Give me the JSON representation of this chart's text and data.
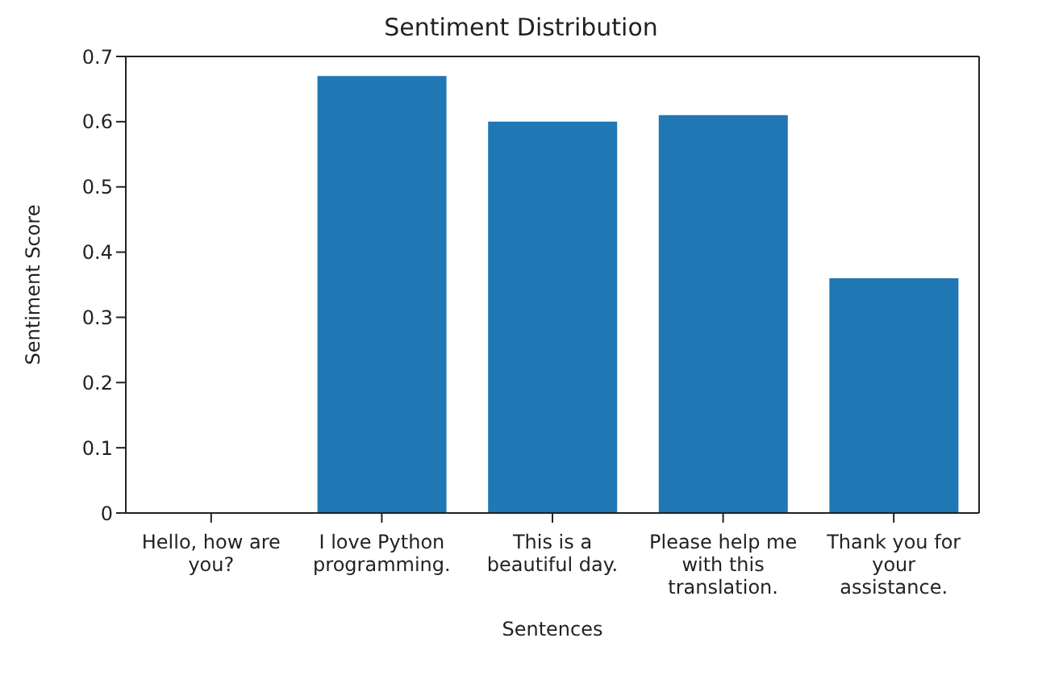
{
  "chart_data": {
    "type": "bar",
    "title": "Sentiment Distribution",
    "xlabel": "Sentences",
    "ylabel": "Sentiment Score",
    "categories": [
      "Hello, how are you?",
      "I love Python programming.",
      "This is a beautiful day.",
      "Please help me with this translation.",
      "Thank you for your assistance."
    ],
    "values": [
      0,
      0.67,
      0.6,
      0.61,
      0.36
    ],
    "color": "#1f77b4",
    "ylim": [
      0,
      0.7
    ],
    "yticks": [
      0,
      0.1,
      0.2,
      0.3,
      0.4,
      0.5,
      0.6,
      0.7
    ],
    "grid": false,
    "legend": false
  }
}
